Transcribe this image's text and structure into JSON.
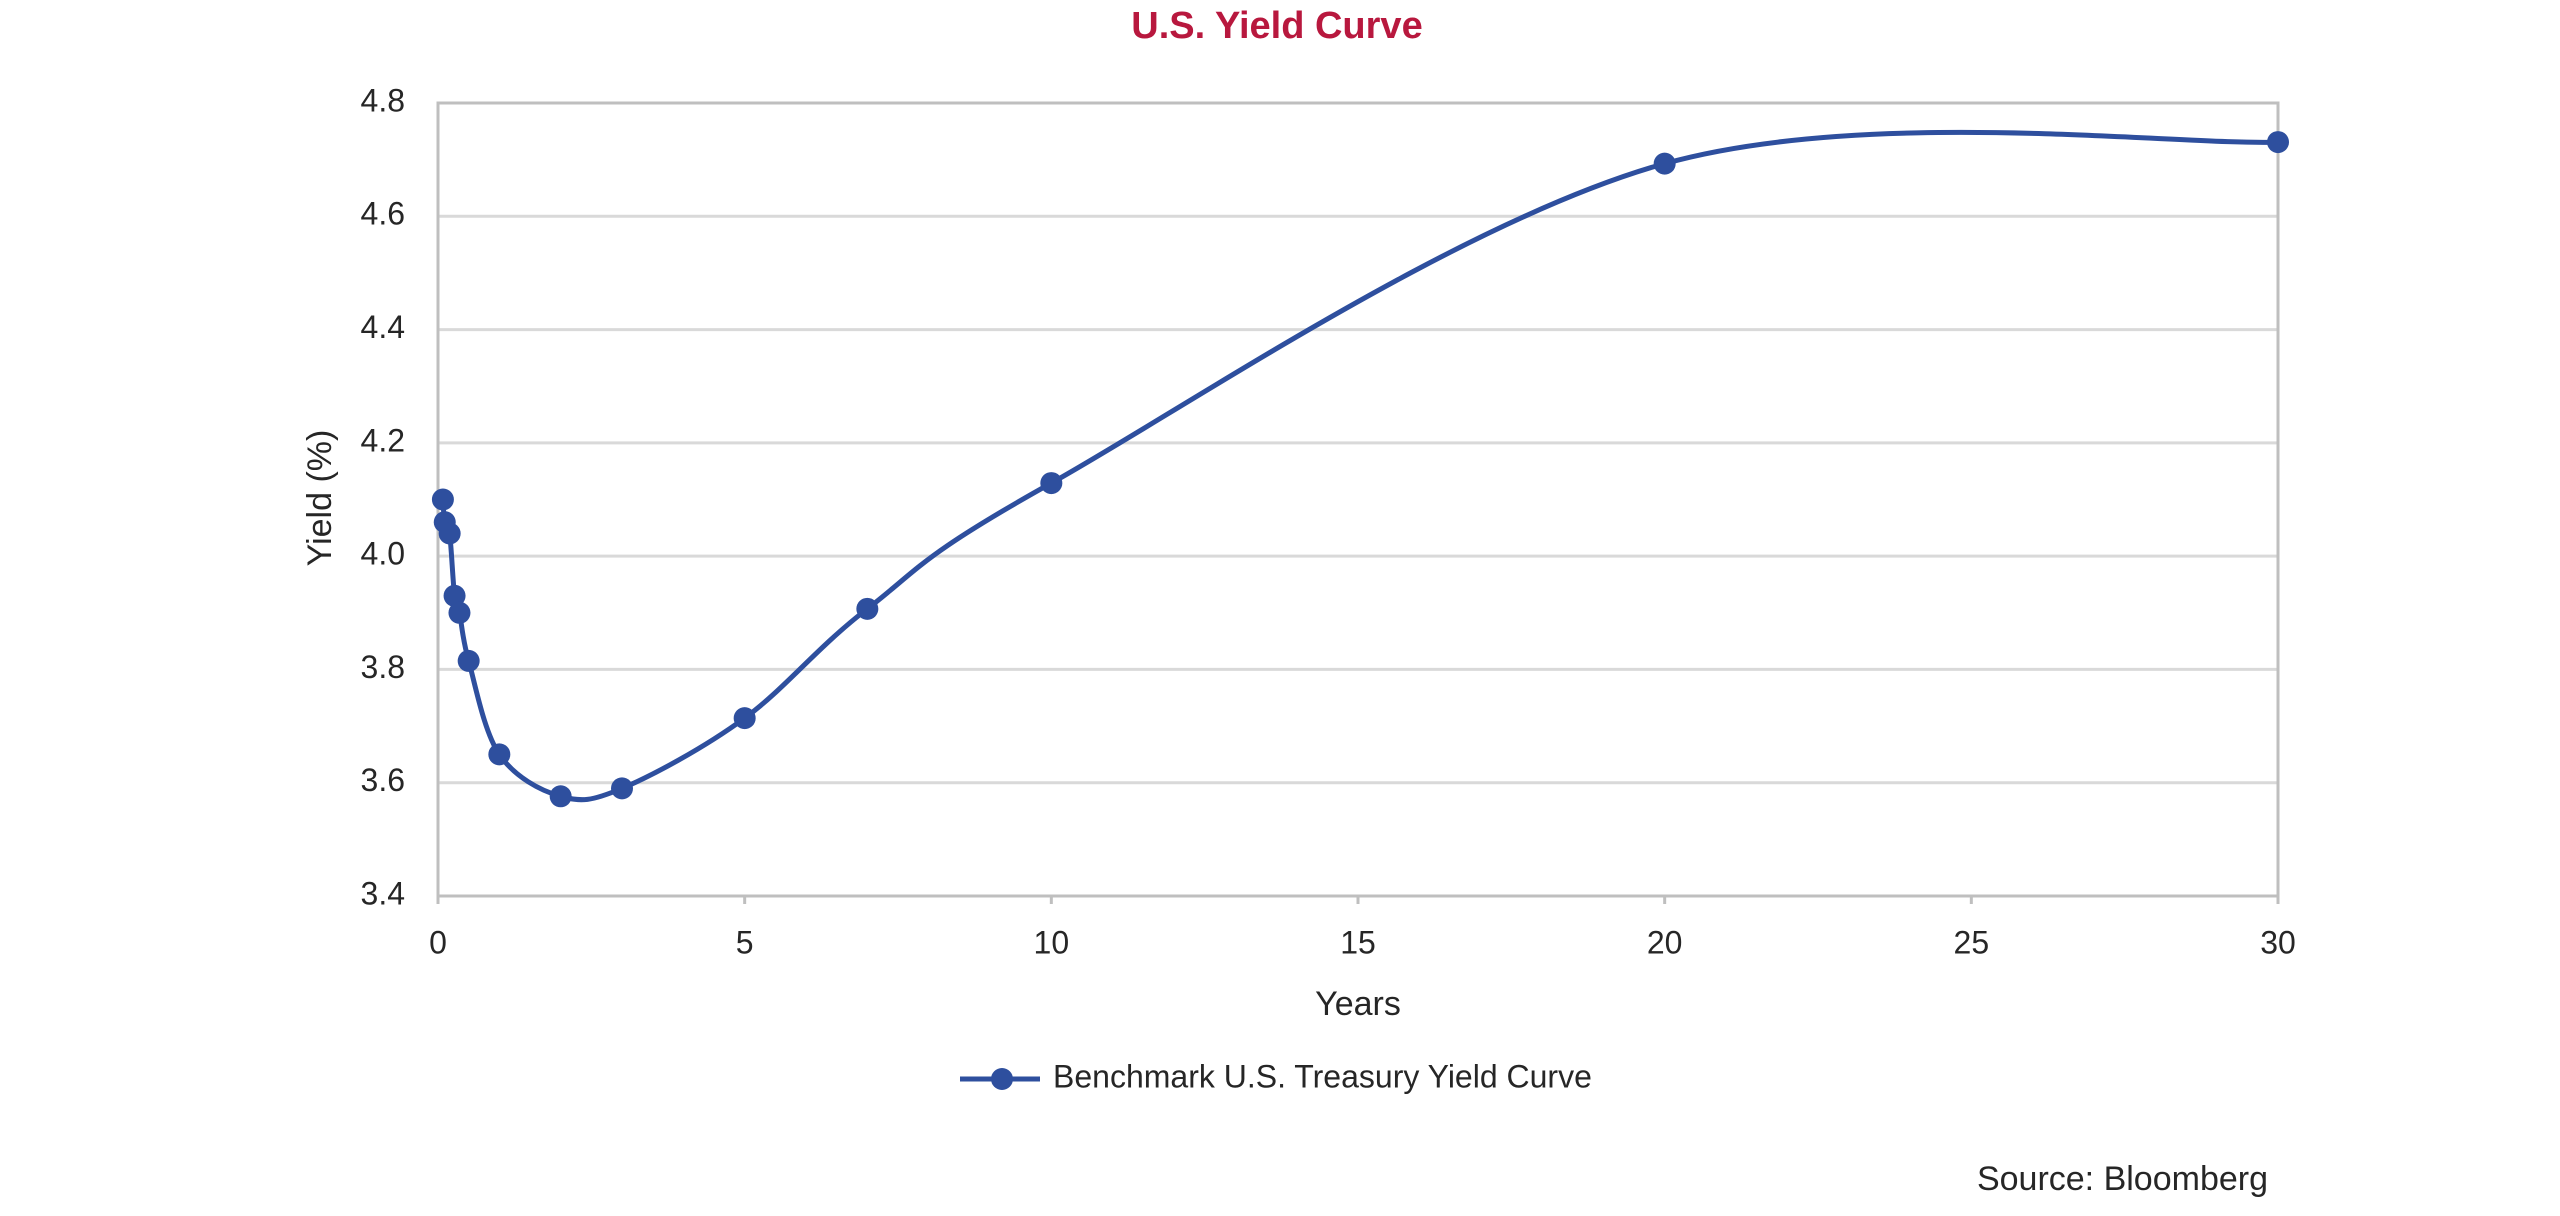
{
  "chart_data": {
    "type": "line",
    "title": "U.S. Yield Curve",
    "x_label": "Years",
    "y_label": "Yield (%)",
    "x": [
      0.08,
      0.11,
      0.19,
      0.27,
      0.35,
      0.5,
      1,
      2,
      3,
      5,
      7,
      10,
      20,
      30
    ],
    "series": [
      {
        "name": "Benchmark U.S. Treasury Yield Curve",
        "color": "#2e4f9e",
        "values": [
          4.1,
          4.06,
          4.04,
          3.93,
          3.9,
          3.815,
          3.65,
          3.576,
          3.59,
          3.714,
          3.907,
          4.129,
          4.693,
          4.731
        ]
      }
    ],
    "xlim": [
      0,
      30
    ],
    "xticks": [
      0,
      5,
      10,
      15,
      20,
      25,
      30
    ],
    "ylim": [
      3.4,
      4.8
    ],
    "yticks": [
      3.4,
      3.6,
      3.8,
      {
        "value": 4,
        "label": "4.0"
      },
      4.2,
      4.4,
      4.6,
      4.8
    ],
    "grid": true,
    "legend": "bottom",
    "smooth": true,
    "source": "Source: Bloomberg"
  }
}
